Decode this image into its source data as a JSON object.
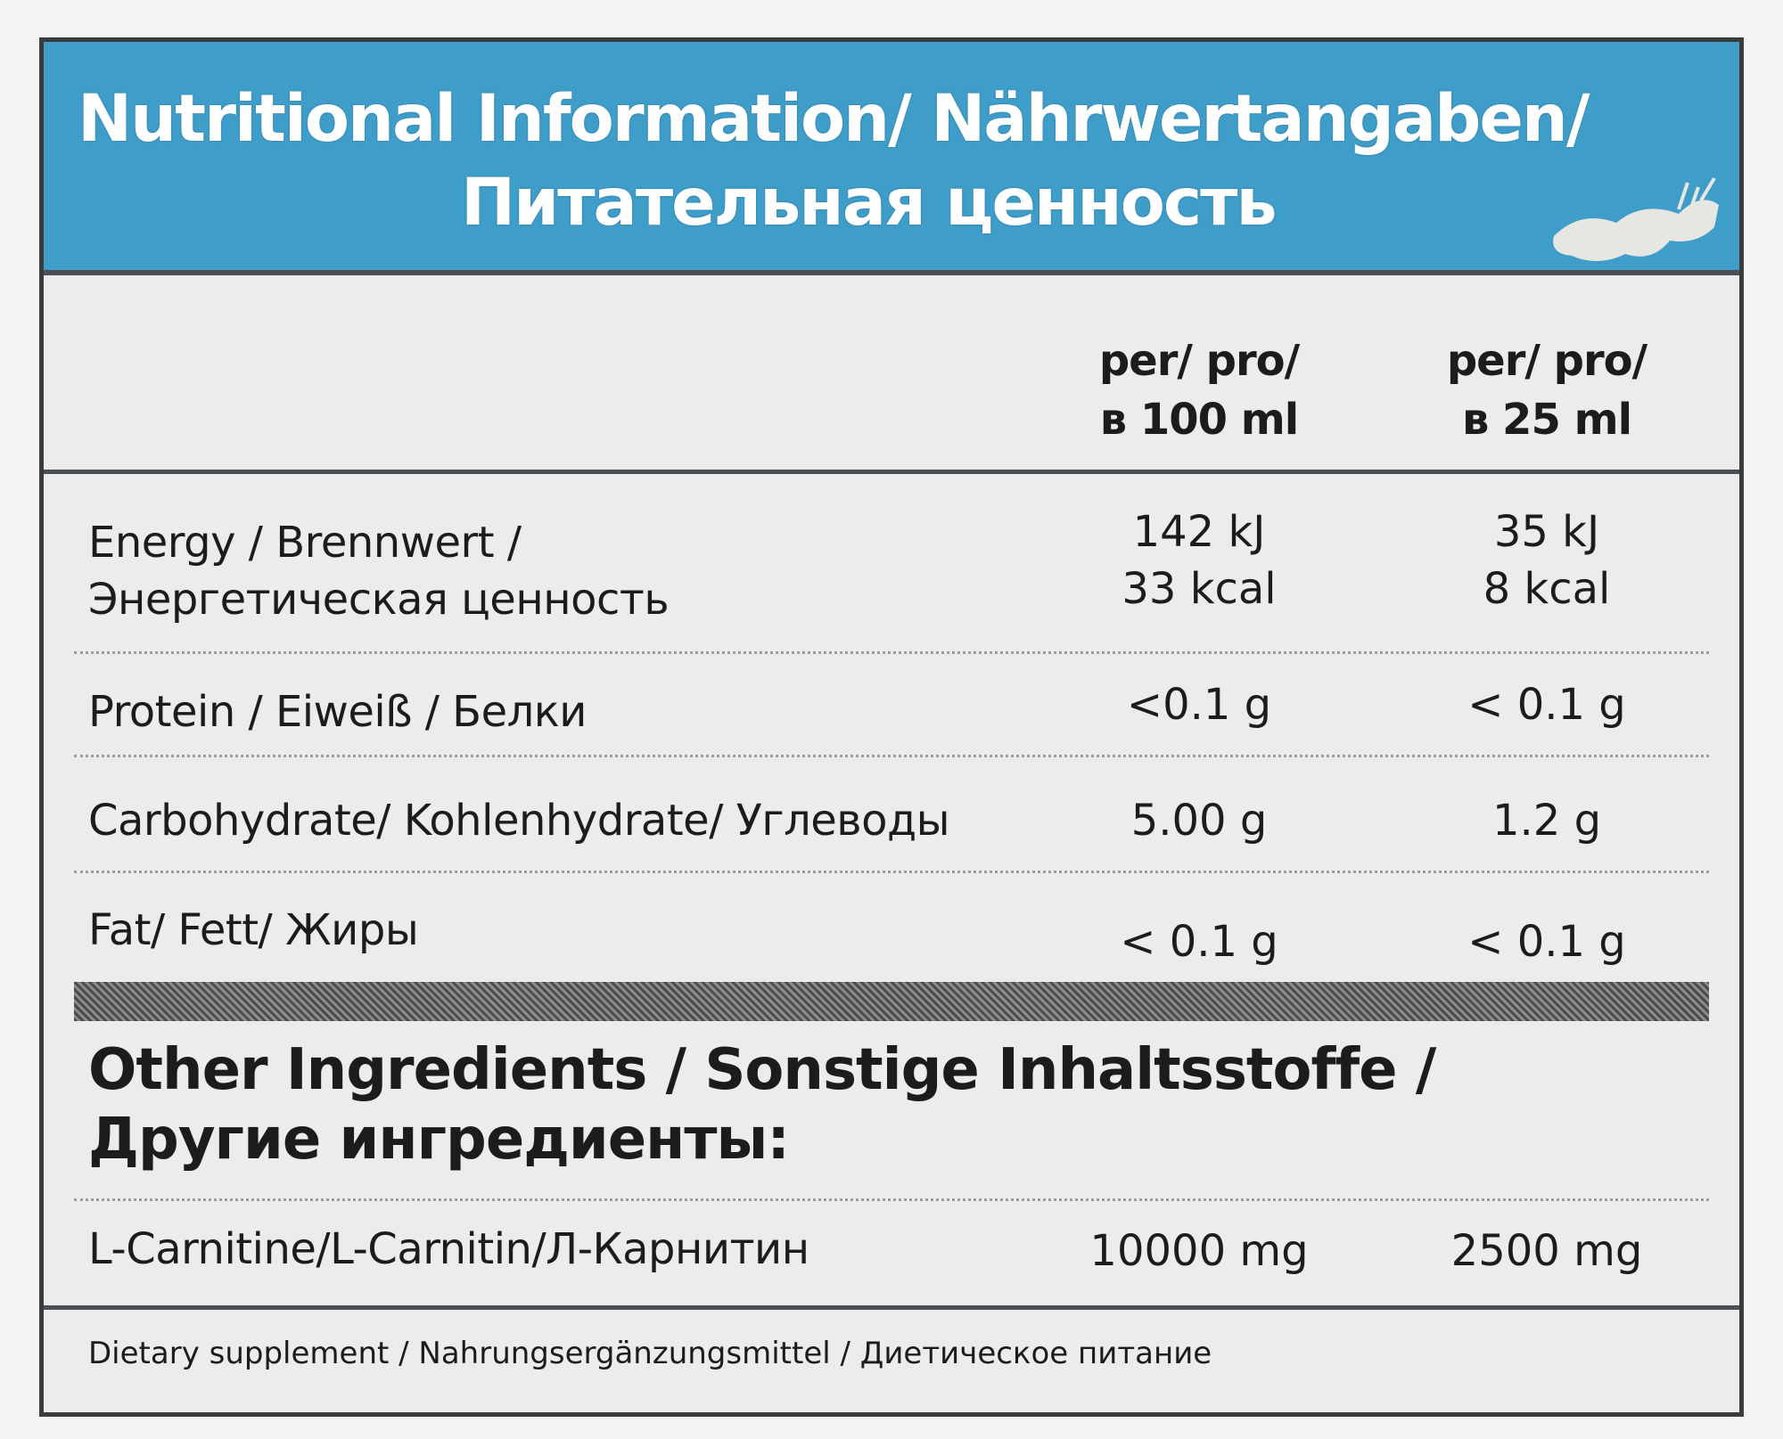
{
  "header": {
    "line1": "Nutritional Information/ Nährwertangaben/",
    "line2": "Питательная ценность"
  },
  "columns": {
    "per_100": {
      "line1": "per/ pro/",
      "line2": "в 100 ml"
    },
    "per_25": {
      "line1": "per/ pro/",
      "line2": "в 25 ml"
    }
  },
  "rows": [
    {
      "label1": "Energy / Brennwert /",
      "label2": "Энергетическая ценность",
      "v100_1": "142 kJ",
      "v100_2": "33 kcal",
      "v25_1": "35 kJ",
      "v25_2": "8 kcal"
    },
    {
      "label1": "Protein / Eiweiß / Белки",
      "v100_1": "<0.1 g",
      "v25_1": "< 0.1 g"
    },
    {
      "label1": "Carbohydrate/ Kohlenhydrate/ Углеводы",
      "v100_1": "5.00 g",
      "v25_1": "1.2 g"
    },
    {
      "label1": "Fat/ Fett/ Жиры",
      "v100_1": "< 0.1 g",
      "v25_1": "< 0.1 g"
    }
  ],
  "ingredients": {
    "title1": "Other Ingredients / Sonstige Inhaltsstoffe /",
    "title2": "Другие ингредиенты:",
    "items": [
      {
        "label": "L-Carnitine/L-Carnitin/Л-Карнитин",
        "v100": "10000 mg",
        "v25": "2500 mg"
      }
    ]
  },
  "footer": {
    "text": "Dietary supplement / Nahrungsergänzungsmittel / Диетическое питание"
  },
  "colors": {
    "header_blue": "#3f9dc9",
    "panel_bg": "#eaeced",
    "border": "#3a3b3c"
  }
}
